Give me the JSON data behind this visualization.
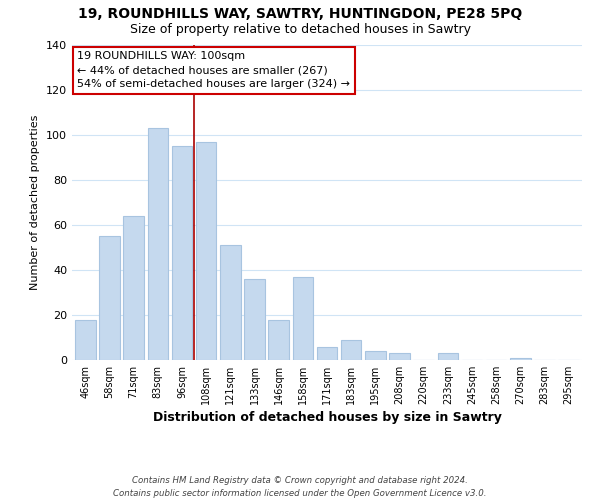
{
  "title": "19, ROUNDHILLS WAY, SAWTRY, HUNTINGDON, PE28 5PQ",
  "subtitle": "Size of property relative to detached houses in Sawtry",
  "xlabel": "Distribution of detached houses by size in Sawtry",
  "ylabel": "Number of detached properties",
  "bar_color": "#c5d9ee",
  "bar_edge_color": "#a8c4e0",
  "vline_color": "#aa0000",
  "categories": [
    "46sqm",
    "58sqm",
    "71sqm",
    "83sqm",
    "96sqm",
    "108sqm",
    "121sqm",
    "133sqm",
    "146sqm",
    "158sqm",
    "171sqm",
    "183sqm",
    "195sqm",
    "208sqm",
    "220sqm",
    "233sqm",
    "245sqm",
    "258sqm",
    "270sqm",
    "283sqm",
    "295sqm"
  ],
  "values": [
    18,
    55,
    64,
    103,
    95,
    97,
    51,
    36,
    18,
    37,
    6,
    9,
    4,
    3,
    0,
    3,
    0,
    0,
    1,
    0,
    0
  ],
  "ylim": [
    0,
    140
  ],
  "yticks": [
    0,
    20,
    40,
    60,
    80,
    100,
    120,
    140
  ],
  "vline_pos": 4.5,
  "annotation_text": "19 ROUNDHILLS WAY: 100sqm\n← 44% of detached houses are smaller (267)\n54% of semi-detached houses are larger (324) →",
  "annotation_box_color": "#ffffff",
  "annotation_box_edge": "#cc0000",
  "footer": "Contains HM Land Registry data © Crown copyright and database right 2024.\nContains public sector information licensed under the Open Government Licence v3.0.",
  "background_color": "#ffffff",
  "grid_color": "#d0e4f5"
}
